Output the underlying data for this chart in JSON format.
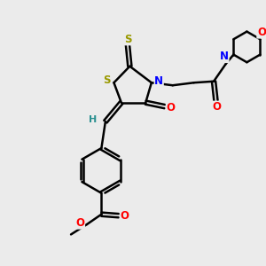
{
  "background_color": "#ebebeb",
  "bond_color": "#000000",
  "atom_colors": {
    "S": "#999900",
    "N": "#0000ff",
    "O": "#ff0000",
    "C": "#000000",
    "H": "#2a9090"
  },
  "figsize": [
    3.0,
    3.0
  ],
  "dpi": 100
}
